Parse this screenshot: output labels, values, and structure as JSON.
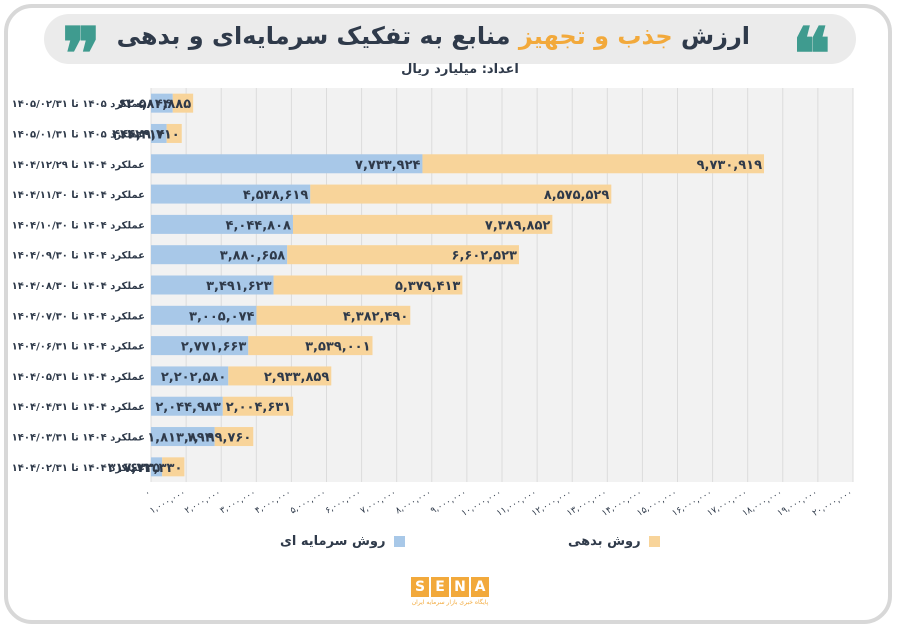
{
  "header": {
    "title_part1": "ارزش",
    "title_accent": "جذب و تجهیز",
    "title_part2": "منابع به تفکیک سرمایه‌ای و بدهی",
    "unit": "اعداد: میلیارد ریال",
    "quote_open": "❝",
    "quote_close": "❞"
  },
  "legend": {
    "capital": "روش سرمایه ای",
    "current": "روش بدهی"
  },
  "logo": {
    "letters": [
      "S",
      "E",
      "N",
      "A"
    ],
    "tagline": "پایگاه خبری بازار سرمایه ایران"
  },
  "colors": {
    "capital": "#a8c8e8",
    "current": "#f8d49a",
    "plot_bg": "#f2f2f2",
    "grid": "#dcdcdc",
    "text": "#2f3a4a"
  },
  "chart_data": {
    "type": "bar",
    "orientation": "horizontal",
    "stacked": true,
    "categories": [
      "عملکرد ۱۴۰۵ تا ۱۴۰۵/۰۲/۳۱",
      "عملکرد ۱۴۰۵ تا ۱۴۰۵/۰۱/۳۱",
      "عملکرد ۱۴۰۴ تا ۱۴۰۴/۱۲/۲۹",
      "عملکرد ۱۴۰۴ تا ۱۴۰۴/۱۱/۳۰",
      "عملکرد ۱۴۰۴ تا ۱۴۰۴/۱۰/۳۰",
      "عملکرد ۱۴۰۴ تا ۱۴۰۴/۰۹/۳۰",
      "عملکرد ۱۴۰۴ تا ۱۴۰۴/۰۸/۳۰",
      "عملکرد ۱۴۰۴ تا ۱۴۰۴/۰۷/۳۰",
      "عملکرد ۱۴۰۴ تا ۱۴۰۴/۰۶/۳۱",
      "عملکرد ۱۴۰۴ تا ۱۴۰۴/۰۵/۳۱",
      "عملکرد ۱۴۰۴ تا ۱۴۰۴/۰۴/۳۱",
      "عملکرد ۱۴۰۴ تا ۱۴۰۴/۰۳/۳۱",
      "عملکرد ۱۴۰۴ تا ۱۴۰۴/۰۲/۳۱"
    ],
    "series": [
      {
        "name": "روش سرمایه ای",
        "values": [
          620044,
          446314,
          7733924,
          4538619,
          4044808,
          3880658,
          3491623,
          3005074,
          2771663,
          2202580,
          2044983,
          1813893,
          317725
        ],
        "labels": [
          "۶۲۰,۰۴۴",
          "۴۴۶,۳۱۴",
          "۷,۷۳۳,۹۲۴",
          "۴,۵۳۸,۶۱۹",
          "۴,۰۴۴,۸۰۸",
          "۳,۸۸۰,۶۵۸",
          "۳,۴۹۱,۶۲۳",
          "۳,۰۰۵,۰۷۴",
          "۲,۷۷۱,۶۶۳",
          "۲,۲۰۲,۵۸۰",
          "۲,۰۴۴,۹۸۳",
          "۱,۸۱۳,۸۹۳",
          "۳۱۷,۷۲۵"
        ]
      },
      {
        "name": "روش بدهی",
        "values": [
          580885,
          429710,
          9730919,
          8575529,
          7389852,
          6602523,
          5379413,
          4382490,
          3539001,
          2933859,
          2004631,
          1099760,
          633330
        ],
        "labels": [
          "۵۸۰,۸۸۵",
          "۴۲۹,۷۱۰",
          "۹,۷۳۰,۹۱۹",
          "۸,۵۷۵,۵۲۹",
          "۷,۳۸۹,۸۵۲",
          "۶,۶۰۲,۵۲۳",
          "۵,۳۷۹,۴۱۳",
          "۴,۳۸۲,۴۹۰",
          "۳,۵۳۹,۰۰۱",
          "۲,۹۳۳,۸۵۹",
          "۲,۰۰۴,۶۳۱",
          "۱,۰۹۹,۷۶۰",
          "۶۳۳,۳۳۰"
        ]
      }
    ],
    "x_ticks": [
      "۰",
      "۱,۰۰۰,۰۰۰",
      "۲,۰۰۰,۰۰۰",
      "۳,۰۰۰,۰۰۰",
      "۴,۰۰۰,۰۰۰",
      "۵,۰۰۰,۰۰۰",
      "۶,۰۰۰,۰۰۰",
      "۷,۰۰۰,۰۰۰",
      "۸,۰۰۰,۰۰۰",
      "۹,۰۰۰,۰۰۰",
      "۱۰,۰۰۰,۰۰۰",
      "۱۱,۰۰۰,۰۰۰",
      "۱۲,۰۰۰,۰۰۰",
      "۱۳,۰۰۰,۰۰۰",
      "۱۴,۰۰۰,۰۰۰",
      "۱۵,۰۰۰,۰۰۰",
      "۱۶,۰۰۰,۰۰۰",
      "۱۷,۰۰۰,۰۰۰",
      "۱۸,۰۰۰,۰۰۰",
      "۱۹,۰۰۰,۰۰۰",
      "۲۰,۰۰۰,۰۰۰"
    ],
    "xlim": [
      0,
      20000000
    ],
    "grid": true,
    "legend_position": "bottom"
  }
}
